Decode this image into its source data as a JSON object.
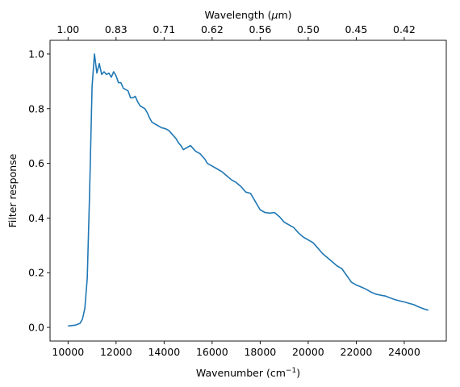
{
  "chart_data": {
    "type": "line",
    "title": "",
    "xlabel": "Wavenumber (cm",
    "xlabel_superscript": "−1",
    "xlabel_suffix": ")",
    "ylabel": "Filter response",
    "top_xlabel_prefix": "Wavelength (",
    "top_xlabel_unit_italic": "μ",
    "top_xlabel_suffix": "m)",
    "xlim": [
      9250,
      25750
    ],
    "ylim": [
      -0.05,
      1.05
    ],
    "grid": false,
    "line_color": "#1f77b4",
    "x_ticks": [
      10000,
      12000,
      14000,
      16000,
      18000,
      20000,
      22000,
      24000
    ],
    "y_ticks": [
      0.0,
      0.2,
      0.4,
      0.6,
      0.8,
      1.0
    ],
    "top_ticks": [
      {
        "at": 10000,
        "label": "1.00"
      },
      {
        "at": 12000,
        "label": "0.83"
      },
      {
        "at": 14000,
        "label": "0.71"
      },
      {
        "at": 16000,
        "label": "0.62"
      },
      {
        "at": 18000,
        "label": "0.56"
      },
      {
        "at": 20000,
        "label": "0.50"
      },
      {
        "at": 22000,
        "label": "0.45"
      },
      {
        "at": 24000,
        "label": "0.42"
      }
    ],
    "series": [
      {
        "x": [
          10000,
          10300,
          10500,
          10600,
          10700,
          10800,
          10900,
          11000,
          11100,
          11200,
          11300,
          11400,
          11500,
          11600,
          11700,
          11800,
          11900,
          12000,
          12100,
          12200,
          12300,
          12400,
          12500,
          12600,
          12700,
          12800,
          12900,
          13000,
          13100,
          13200,
          13300,
          13400,
          13500,
          13600,
          13700,
          13800,
          13900,
          14000,
          14100,
          14200,
          14300,
          14400,
          14500,
          14600,
          14700,
          14800,
          14900,
          15000,
          15100,
          15200,
          15300,
          15400,
          15500,
          15600,
          15700,
          15800,
          15900,
          16000,
          16200,
          16400,
          16600,
          16800,
          17000,
          17200,
          17400,
          17600,
          17800,
          18000,
          18200,
          18400,
          18600,
          18800,
          19000,
          19200,
          19400,
          19600,
          19800,
          20000,
          20200,
          20400,
          20600,
          20800,
          21000,
          21200,
          21400,
          21600,
          21800,
          22000,
          22200,
          22400,
          22600,
          22800,
          23000,
          23200,
          23400,
          23600,
          23800,
          24000,
          24200,
          24400,
          24600,
          24800,
          25000
        ],
        "y": [
          0.005,
          0.008,
          0.015,
          0.03,
          0.07,
          0.18,
          0.5,
          0.88,
          1.0,
          0.93,
          0.965,
          0.925,
          0.935,
          0.925,
          0.93,
          0.915,
          0.935,
          0.92,
          0.895,
          0.895,
          0.875,
          0.87,
          0.865,
          0.84,
          0.84,
          0.845,
          0.825,
          0.81,
          0.805,
          0.8,
          0.785,
          0.765,
          0.75,
          0.745,
          0.74,
          0.735,
          0.73,
          0.728,
          0.725,
          0.72,
          0.71,
          0.7,
          0.69,
          0.675,
          0.665,
          0.65,
          0.655,
          0.66,
          0.665,
          0.655,
          0.645,
          0.64,
          0.635,
          0.625,
          0.615,
          0.6,
          0.595,
          0.59,
          0.58,
          0.57,
          0.555,
          0.54,
          0.53,
          0.515,
          0.495,
          0.49,
          0.46,
          0.43,
          0.42,
          0.418,
          0.42,
          0.405,
          0.385,
          0.375,
          0.365,
          0.345,
          0.33,
          0.32,
          0.31,
          0.29,
          0.27,
          0.255,
          0.24,
          0.225,
          0.215,
          0.19,
          0.165,
          0.155,
          0.148,
          0.14,
          0.13,
          0.122,
          0.118,
          0.115,
          0.108,
          0.102,
          0.097,
          0.093,
          0.088,
          0.083,
          0.075,
          0.068,
          0.063
        ]
      }
    ]
  }
}
